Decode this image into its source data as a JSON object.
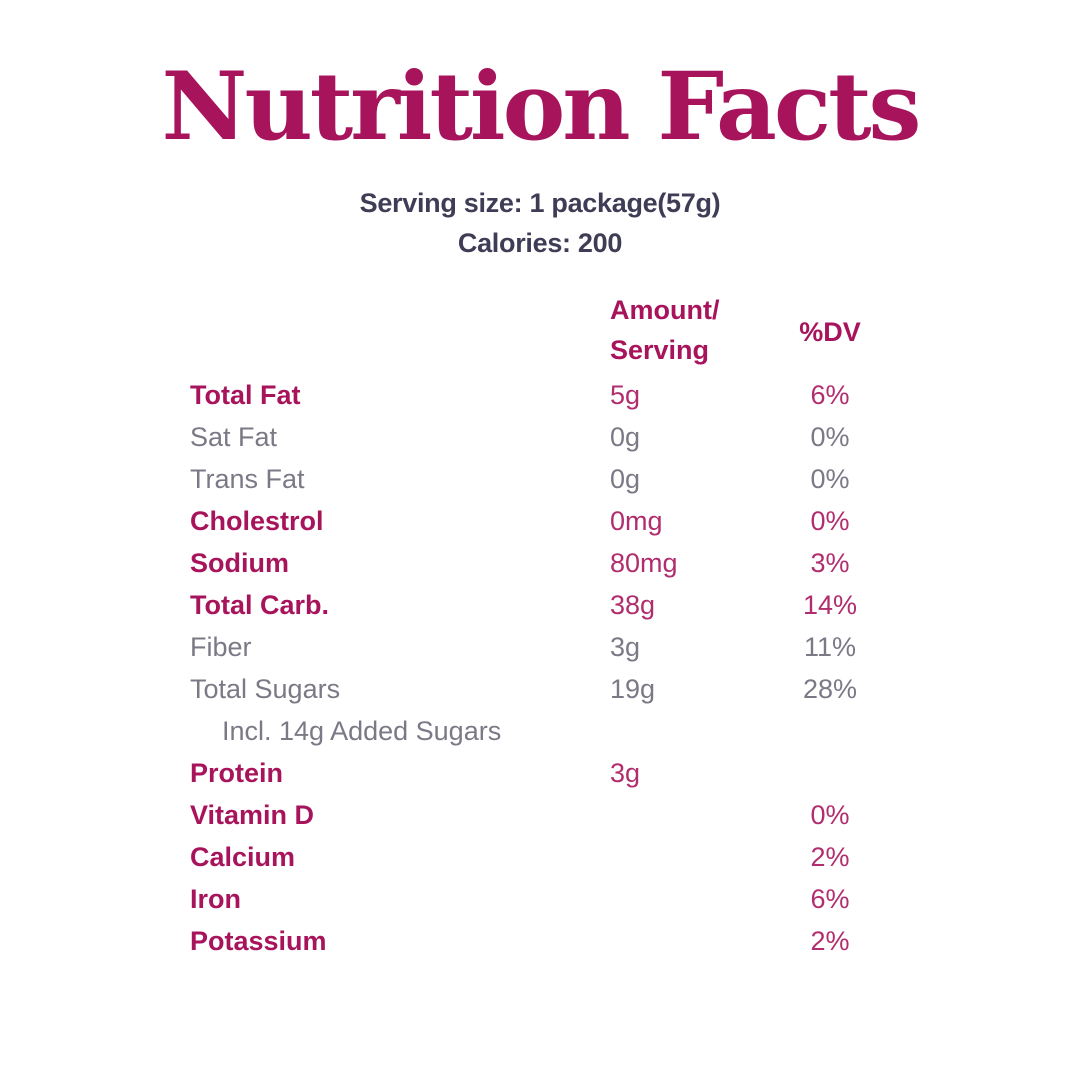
{
  "title": "Nutrition Facts",
  "serving_line": "Serving size: 1 package(57g)",
  "calories_line": "Calories: 200",
  "table": {
    "columns": {
      "amount_header": "Amount/\nServing",
      "dv_header": "%DV"
    },
    "rows": [
      {
        "label": "Total Fat",
        "amount": "5g",
        "dv": "6%",
        "emphasis": true,
        "indent": false
      },
      {
        "label": "Sat Fat",
        "amount": "0g",
        "dv": "0%",
        "emphasis": false,
        "indent": false
      },
      {
        "label": "Trans Fat",
        "amount": "0g",
        "dv": "0%",
        "emphasis": false,
        "indent": false
      },
      {
        "label": "Cholestrol",
        "amount": "0mg",
        "dv": "0%",
        "emphasis": true,
        "indent": false
      },
      {
        "label": "Sodium",
        "amount": "80mg",
        "dv": "3%",
        "emphasis": true,
        "indent": false
      },
      {
        "label": "Total Carb.",
        "amount": "38g",
        "dv": "14%",
        "emphasis": true,
        "indent": false
      },
      {
        "label": "Fiber",
        "amount": "3g",
        "dv": "11%",
        "emphasis": false,
        "indent": false
      },
      {
        "label": "Total Sugars",
        "amount": "19g",
        "dv": "28%",
        "emphasis": false,
        "indent": false
      },
      {
        "label": "Incl. 14g Added Sugars",
        "amount": "",
        "dv": "",
        "emphasis": false,
        "indent": true
      },
      {
        "label": "Protein",
        "amount": "3g",
        "dv": "",
        "emphasis": true,
        "indent": false
      },
      {
        "label": "Vitamin D",
        "amount": "",
        "dv": "0%",
        "emphasis": true,
        "indent": false
      },
      {
        "label": "Calcium",
        "amount": "",
        "dv": "2%",
        "emphasis": true,
        "indent": false
      },
      {
        "label": "Iron",
        "amount": "",
        "dv": "6%",
        "emphasis": true,
        "indent": false
      },
      {
        "label": "Potassium",
        "amount": "",
        "dv": "2%",
        "emphasis": true,
        "indent": false
      }
    ]
  },
  "colors": {
    "accent": "#a8145c",
    "accent_value": "#b12d6d",
    "muted": "#7b7986",
    "dark": "#3f3d56",
    "background": "#ffffff"
  }
}
